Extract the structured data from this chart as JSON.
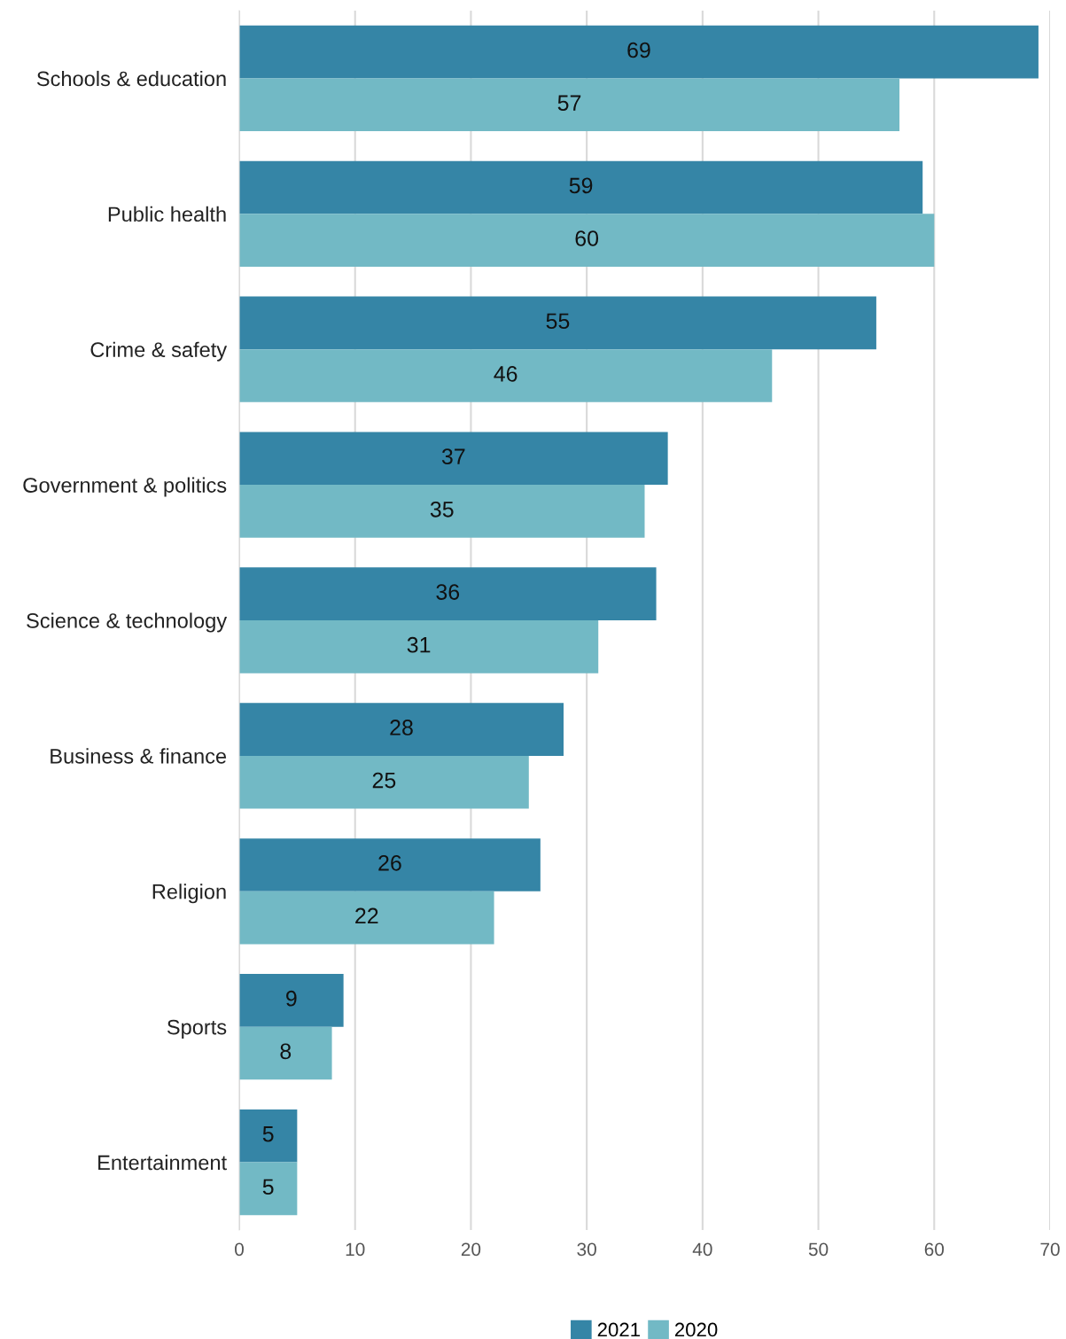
{
  "chart_data": {
    "type": "bar",
    "orientation": "horizontal",
    "categories": [
      "Schools & education",
      "Public health",
      "Crime & safety",
      "Government & politics",
      "Science & technology",
      "Business & finance",
      "Religion",
      "Sports",
      "Entertainment"
    ],
    "series": [
      {
        "name": "2021",
        "color": "#3585a6",
        "values": [
          69,
          59,
          55,
          37,
          36,
          28,
          26,
          9,
          5
        ]
      },
      {
        "name": "2020",
        "color": "#72b9c5",
        "values": [
          57,
          60,
          46,
          35,
          31,
          25,
          22,
          8,
          5
        ]
      }
    ],
    "xlim": [
      0,
      70
    ],
    "xticks": [
      0,
      10,
      20,
      30,
      40,
      50,
      60,
      70
    ],
    "grid": "x",
    "legend": "bottom",
    "data_labels": true
  }
}
